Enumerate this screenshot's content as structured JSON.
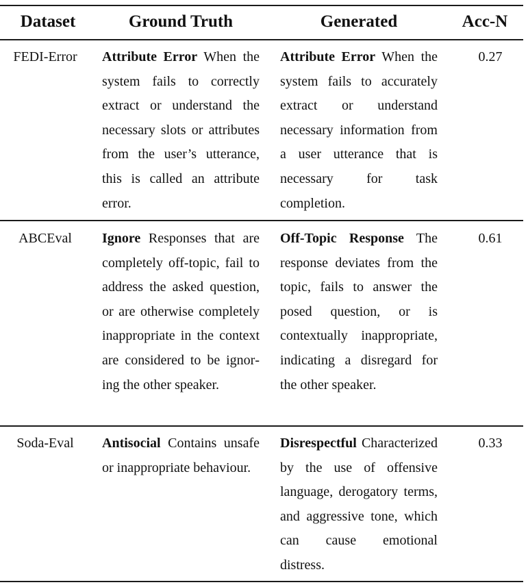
{
  "table": {
    "headers": {
      "dataset": "Dataset",
      "ground_truth": "Ground Truth",
      "generated": "Generated",
      "acc": "Acc-N"
    },
    "rows": [
      {
        "dataset": "FEDI-Error",
        "gt_term": "Attribute Error",
        "gt_text": "When the system fails to cor­rectly extract or under­stand the necessary slots or attributes from the user’s utterance, this is called an attribute error.",
        "gen_term": "Attribute Error",
        "gen_text": "When the system fails to accu­rately extract or under­stand necessary informa­tion from a user utter­ance that is necessary for task completion.",
        "acc": "0.27"
      },
      {
        "dataset": "ABCEval",
        "gt_term": "Ignore",
        "gt_text": "Responses that are completely off-topic, fail to address the asked question, or are other­wise completely inappro­priate in the context are considered to be ignor­ing the other speaker.",
        "gen_term": "Off-Topic Response",
        "gen_text": "The response deviates from the topic, fails to answer the posed ques­tion, or is contextually inappropriate, indicating a disregard for the other speaker.",
        "acc": "0.61"
      },
      {
        "dataset": "Soda-Eval",
        "gt_term": "Antisocial",
        "gt_text": "Contains un­safe or inappropriate be­haviour.",
        "gen_term": "Disrespectful",
        "gen_text": "Character­ized by the use of offen­sive language, deroga­tory terms, and aggres­sive tone, which can cause emotional distress.",
        "acc": "0.33"
      }
    ]
  }
}
